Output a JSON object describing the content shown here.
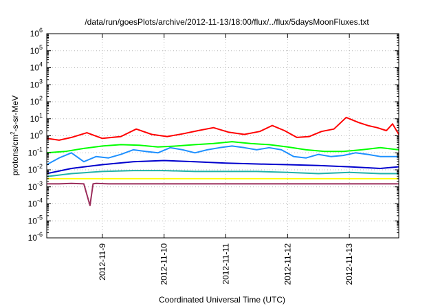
{
  "chart_data": {
    "type": "line",
    "title": "/data/run/goesPlots/archive/2012-11-13/18:00/flux/../flux/5daysMoonFluxes.txt",
    "xlabel": "Coordinated Universal Time (UTC)",
    "ylabel": "protons/cm²-s-sr-MeV",
    "ylabel_parts": {
      "pre": "protons/cm",
      "sup": "2",
      "post": "-s-sr-MeV"
    },
    "x_ticks": [
      "2012-11-9",
      "2012-11-10",
      "2012-11-11",
      "2012-11-12",
      "2012-11-13"
    ],
    "x_tick_days": [
      1,
      2,
      3,
      4,
      5
    ],
    "xlim": [
      0.1,
      5.8
    ],
    "xlim_note": "days since 2012-11-08 00:00 UTC",
    "y_scale": "log",
    "ylim": [
      1e-06,
      1000000.0
    ],
    "y_ticks": [
      {
        "base": "10",
        "exp": "-6"
      },
      {
        "base": "10",
        "exp": "-5"
      },
      {
        "base": "10",
        "exp": "-4"
      },
      {
        "base": "10",
        "exp": "-3"
      },
      {
        "base": "10",
        "exp": "-2"
      },
      {
        "base": "10",
        "exp": "-1"
      },
      {
        "base": "10",
        "exp": "0"
      },
      {
        "base": "10",
        "exp": "1"
      },
      {
        "base": "10",
        "exp": "2"
      },
      {
        "base": "10",
        "exp": "3"
      },
      {
        "base": "10",
        "exp": "4"
      },
      {
        "base": "10",
        "exp": "5"
      },
      {
        "base": "10",
        "exp": "6"
      }
    ],
    "grid": true,
    "series": [
      {
        "color": "#ff0000",
        "x": [
          0.1,
          0.3,
          0.5,
          0.75,
          1.0,
          1.3,
          1.55,
          1.8,
          2.05,
          2.3,
          2.55,
          2.8,
          3.05,
          3.3,
          3.55,
          3.75,
          3.95,
          4.15,
          4.35,
          4.55,
          4.75,
          4.95,
          5.15,
          5.3,
          5.45,
          5.6,
          5.7,
          5.8
        ],
        "y": [
          0.7,
          0.55,
          0.8,
          1.5,
          0.7,
          0.9,
          2.5,
          1.2,
          0.9,
          1.3,
          2.0,
          3.0,
          1.6,
          1.2,
          1.8,
          4.0,
          2.0,
          0.8,
          0.9,
          1.8,
          2.5,
          12,
          6.0,
          4.0,
          3.0,
          2.0,
          5.0,
          1.2
        ]
      },
      {
        "color": "#00ff00",
        "x": [
          0.1,
          0.4,
          0.7,
          1.0,
          1.3,
          1.6,
          1.9,
          2.2,
          2.5,
          2.8,
          3.1,
          3.4,
          3.7,
          4.0,
          4.3,
          4.6,
          4.9,
          5.2,
          5.5,
          5.8
        ],
        "y": [
          0.1,
          0.12,
          0.18,
          0.25,
          0.3,
          0.28,
          0.22,
          0.25,
          0.3,
          0.35,
          0.45,
          0.35,
          0.3,
          0.22,
          0.15,
          0.12,
          0.12,
          0.15,
          0.2,
          0.15
        ]
      },
      {
        "color": "#1e90ff",
        "x": [
          0.1,
          0.3,
          0.5,
          0.7,
          0.9,
          1.1,
          1.3,
          1.5,
          1.7,
          1.9,
          2.1,
          2.3,
          2.5,
          2.7,
          2.9,
          3.1,
          3.3,
          3.5,
          3.7,
          3.9,
          4.1,
          4.3,
          4.5,
          4.7,
          4.9,
          5.1,
          5.3,
          5.5,
          5.8
        ],
        "y": [
          0.02,
          0.05,
          0.1,
          0.03,
          0.06,
          0.05,
          0.08,
          0.15,
          0.12,
          0.1,
          0.2,
          0.15,
          0.1,
          0.15,
          0.2,
          0.25,
          0.2,
          0.15,
          0.2,
          0.15,
          0.06,
          0.05,
          0.08,
          0.06,
          0.07,
          0.1,
          0.08,
          0.06,
          0.06
        ]
      },
      {
        "color": "#0000cd",
        "x": [
          0.1,
          0.5,
          1.0,
          1.5,
          2.0,
          2.5,
          3.0,
          3.5,
          4.0,
          4.5,
          5.0,
          5.5,
          5.8
        ],
        "y": [
          0.006,
          0.012,
          0.02,
          0.03,
          0.035,
          0.03,
          0.025,
          0.022,
          0.02,
          0.018,
          0.015,
          0.012,
          0.015
        ]
      },
      {
        "color": "#20b2aa",
        "x": [
          0.1,
          0.5,
          1.0,
          1.5,
          2.0,
          2.5,
          3.0,
          3.5,
          4.0,
          4.5,
          5.0,
          5.5,
          5.8
        ],
        "y": [
          0.004,
          0.006,
          0.008,
          0.009,
          0.009,
          0.008,
          0.008,
          0.008,
          0.007,
          0.006,
          0.007,
          0.006,
          0.006
        ]
      },
      {
        "color": "#ffff00",
        "x": [
          0.1,
          0.5,
          1.0,
          1.5,
          2.0,
          2.5,
          3.0,
          3.5,
          4.0,
          4.5,
          5.0,
          5.5,
          5.8
        ],
        "y": [
          0.003,
          0.003,
          0.003,
          0.003,
          0.003,
          0.003,
          0.003,
          0.003,
          0.003,
          0.003,
          0.003,
          0.003,
          0.003
        ]
      },
      {
        "color": "#9b2d5b",
        "x": [
          0.1,
          0.3,
          0.5,
          0.7,
          0.8,
          0.85,
          0.9,
          1.1,
          1.5,
          2.0,
          2.5,
          3.0,
          3.5,
          4.0,
          4.5,
          5.0,
          5.5,
          5.8
        ],
        "y": [
          0.0015,
          0.0015,
          0.0016,
          0.0015,
          8e-05,
          0.0015,
          0.0016,
          0.0015,
          0.0015,
          0.0015,
          0.0015,
          0.0015,
          0.0015,
          0.0015,
          0.0015,
          0.0015,
          0.0015,
          0.0015
        ]
      }
    ]
  }
}
